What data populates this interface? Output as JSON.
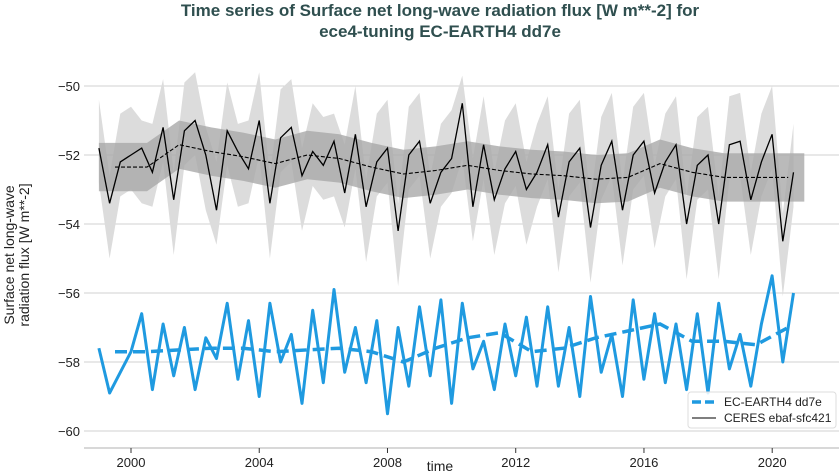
{
  "chart_data": {
    "type": "line",
    "title": [
      "Time series of Surface net long-wave radiation flux [W m**-2] for",
      "ece4-tuning EC-EARTH4 dd7e"
    ],
    "xlabel": "time",
    "ylabel": [
      "Surface net long-wave",
      "radiation flux [W m**-2]"
    ],
    "xlim": [
      1998,
      2022
    ],
    "ylim": [
      -60.3,
      -49.3
    ],
    "xticks": [
      2000,
      2004,
      2008,
      2012,
      2016,
      2020
    ],
    "yticks": [
      -50,
      -52,
      -54,
      -56,
      -58,
      -60
    ],
    "grid": "horizontal",
    "legend": {
      "placement": "bottom-right",
      "entries": [
        "EC-EARTH4 dd7e",
        "CERES ebaf-sfc421"
      ]
    },
    "colors": {
      "model": "#1f9ae0",
      "obs": "#000000",
      "band_dark": "#a9a9a9",
      "band_light": "#dcdcdc",
      "title": "#2f4f4f"
    },
    "series_start": 1999.0,
    "series_step_years": 0.3333,
    "series": [
      {
        "name": "EC-EARTH4 dd7e",
        "style": "solid",
        "values": [
          -57.6,
          -58.9,
          -58.3,
          -57.7,
          -56.6,
          -58.8,
          -56.9,
          -58.4,
          -57.0,
          -58.8,
          -57.3,
          -57.9,
          -56.3,
          -58.5,
          -56.8,
          -59.0,
          -56.3,
          -58.0,
          -57.2,
          -59.2,
          -56.5,
          -58.6,
          -55.9,
          -58.3,
          -57.0,
          -58.6,
          -56.8,
          -59.5,
          -57.0,
          -58.7,
          -56.4,
          -58.4,
          -56.2,
          -59.2,
          -56.3,
          -58.2,
          -57.4,
          -58.8,
          -56.9,
          -58.4,
          -56.7,
          -58.7,
          -56.4,
          -58.7,
          -57.0,
          -59.0,
          -56.1,
          -58.3,
          -57.2,
          -59.0,
          -56.2,
          -58.5,
          -56.6,
          -58.6,
          -56.9,
          -58.8,
          -56.6,
          -58.9,
          -56.3,
          -58.2,
          -57.2,
          -58.7,
          -56.9,
          -55.5,
          -58.0,
          -56.0
        ]
      },
      {
        "name": "CERES ebaf-sfc421",
        "style": "solid",
        "values": [
          -51.8,
          -53.4,
          -52.2,
          -52.0,
          -51.8,
          -52.5,
          -51.2,
          -53.3,
          -51.3,
          -51.0,
          -52.0,
          -53.6,
          -51.3,
          -51.9,
          -52.4,
          -51.0,
          -53.4,
          -51.5,
          -51.2,
          -52.6,
          -51.9,
          -52.3,
          -51.6,
          -53.1,
          -51.4,
          -53.5,
          -52.2,
          -51.8,
          -54.2,
          -52.0,
          -51.6,
          -53.4,
          -52.5,
          -52.1,
          -50.5,
          -53.5,
          -51.7,
          -53.3,
          -52.4,
          -51.9,
          -53.0,
          -52.5,
          -51.7,
          -53.8,
          -52.2,
          -51.8,
          -54.1,
          -52.3,
          -51.6,
          -53.6,
          -52.0,
          -51.6,
          -53.1,
          -52.2,
          -51.7,
          -54.0,
          -52.3,
          -52.0,
          -54.0,
          -51.7,
          -51.6,
          -53.3,
          -52.2,
          -51.4,
          -54.5,
          -52.5
        ]
      },
      {
        "name": "EC-EARTH4 dd7e running mean",
        "style": "dashed",
        "start": 1999.5,
        "step_years": 1,
        "values": [
          -57.7,
          -57.7,
          -57.65,
          -57.6,
          -57.6,
          -57.7,
          -57.65,
          -57.6,
          -57.7,
          -58.0,
          -57.6,
          -57.3,
          -57.15,
          -57.7,
          -57.6,
          -57.3,
          -57.1,
          -56.9,
          -57.4,
          -57.4,
          -57.5,
          -57.0
        ]
      },
      {
        "name": "CERES ebaf-sfc421 running mean",
        "style": "dashed",
        "start": 1999.5,
        "step_years": 1,
        "values": [
          -52.35,
          -52.35,
          -51.7,
          -51.9,
          -52.05,
          -52.25,
          -52.0,
          -52.1,
          -52.35,
          -52.55,
          -52.45,
          -52.3,
          -52.45,
          -52.55,
          -52.6,
          -52.7,
          -52.65,
          -52.25,
          -52.5,
          -52.65,
          -52.65,
          -52.65
        ]
      }
    ],
    "obs_std_dark_band": 0.7,
    "obs_light_band_halfwidth": 1.2
  }
}
